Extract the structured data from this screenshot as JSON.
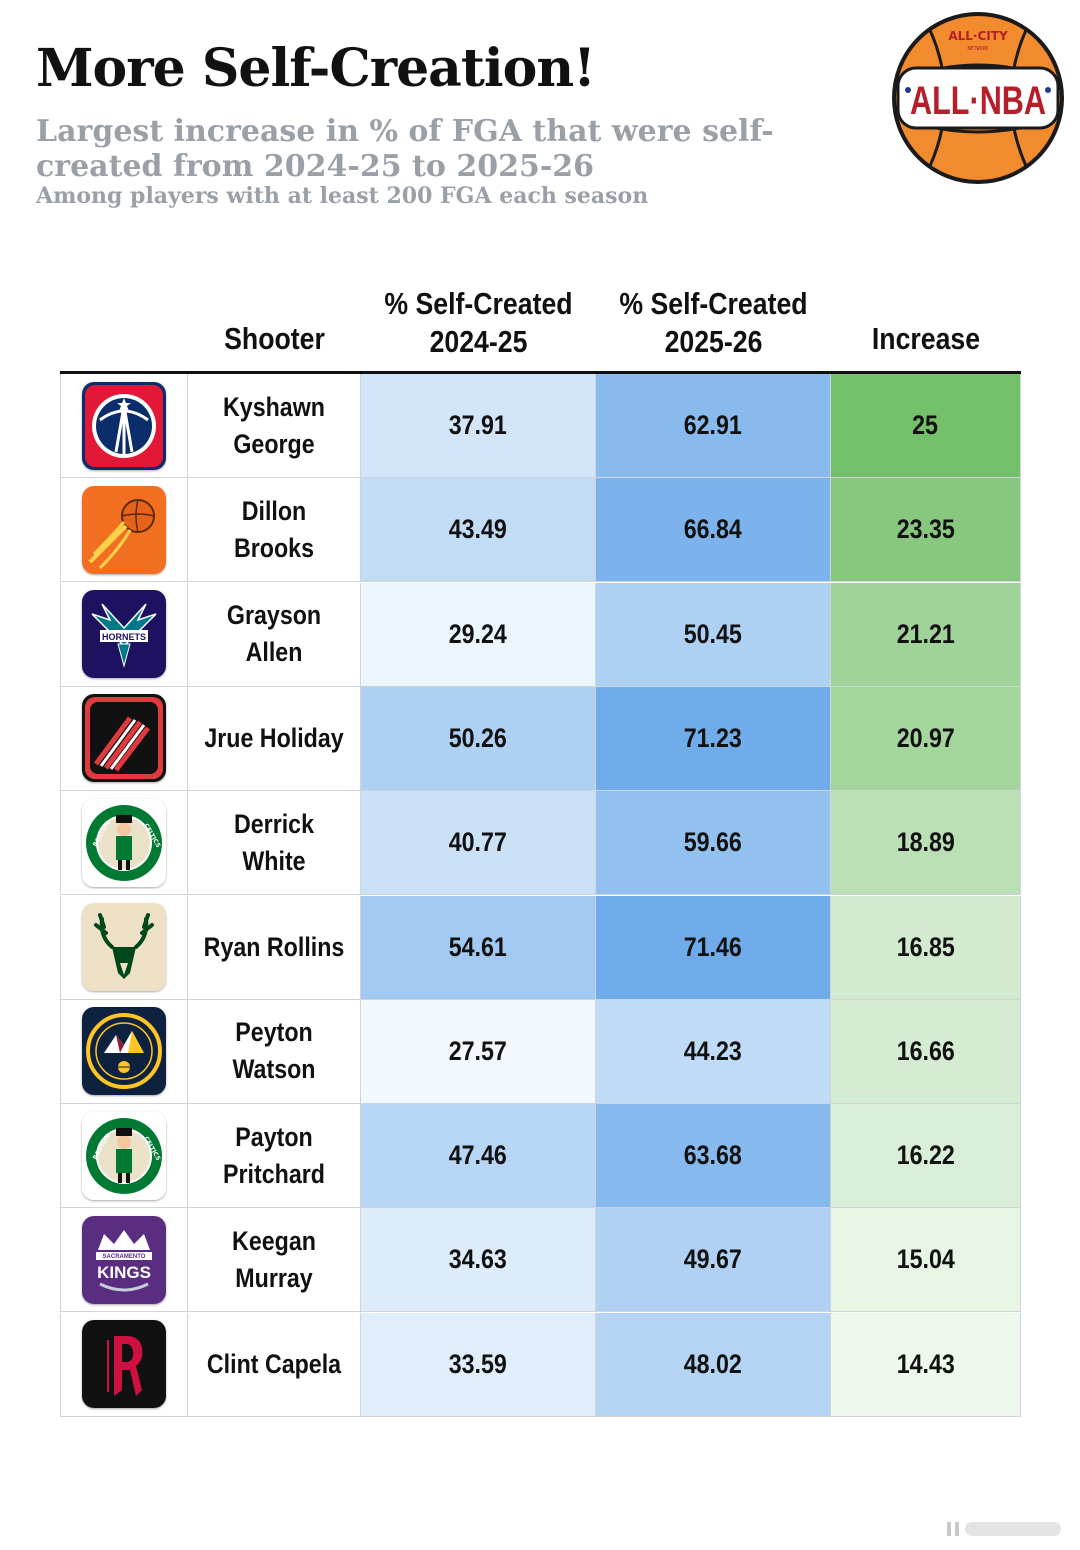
{
  "header": {
    "title": "More Self-Creation!",
    "subtitle": "Largest increase in % of FGA that were self-created from 2024-25 to 2025-26",
    "subtitle2": "Among players with at least 200 FGA each season"
  },
  "logo": {
    "top": "ALL·CITY",
    "small": "NETWORK",
    "main": "ALL·NBA"
  },
  "colors": {
    "blue_scale_low": "#f2f8fd",
    "blue_scale_high": "#6fabea",
    "green_scale_low": "#eef8ec",
    "green_scale_high": "#74bf6a",
    "rule": "#111111"
  },
  "chart_data": {
    "type": "table",
    "title": "More Self-Creation!",
    "subtitle": "Largest increase in % of FGA that were self-created from 2024-25 to 2025-26",
    "note": "Among players with at least 200 FGA each season",
    "columns": [
      "",
      "Shooter",
      "% Self-Created 2024-25",
      "% Self-Created 2025-26",
      "Increase"
    ],
    "header": {
      "shooter": "Shooter",
      "v1_line1": "% Self-Created",
      "v1_line2": "2024-25",
      "v2_line1": "% Self-Created",
      "v2_line2": "2025-26",
      "inc": "Increase"
    },
    "rows": [
      {
        "logo": "wizards-logo-icon",
        "shooter": "Kyshawn George",
        "v1": "37.91",
        "v2": "62.91",
        "inc": "25"
      },
      {
        "logo": "suns-logo-icon",
        "shooter": "Dillon Brooks",
        "v1": "43.49",
        "v2": "66.84",
        "inc": "23.35"
      },
      {
        "logo": "hornets-logo-icon",
        "shooter": "Grayson Allen",
        "v1": "29.24",
        "v2": "50.45",
        "inc": "21.21"
      },
      {
        "logo": "trail-blazers-logo-icon",
        "shooter": "Jrue Holiday",
        "v1": "50.26",
        "v2": "71.23",
        "inc": "20.97"
      },
      {
        "logo": "celtics-logo-icon",
        "shooter": "Derrick White",
        "v1": "40.77",
        "v2": "59.66",
        "inc": "18.89"
      },
      {
        "logo": "bucks-logo-icon",
        "shooter": "Ryan Rollins",
        "v1": "54.61",
        "v2": "71.46",
        "inc": "16.85"
      },
      {
        "logo": "nuggets-logo-icon",
        "shooter": "Peyton Watson",
        "v1": "27.57",
        "v2": "44.23",
        "inc": "16.66"
      },
      {
        "logo": "celtics-logo-icon",
        "shooter": "Payton Pritchard",
        "v1": "47.46",
        "v2": "63.68",
        "inc": "16.22"
      },
      {
        "logo": "kings-logo-icon",
        "shooter": "Keegan Murray",
        "v1": "34.63",
        "v2": "49.67",
        "inc": "15.04"
      },
      {
        "logo": "rockets-logo-icon",
        "shooter": "Clint Capela",
        "v1": "33.59",
        "v2": "48.02",
        "inc": "14.43"
      }
    ]
  }
}
